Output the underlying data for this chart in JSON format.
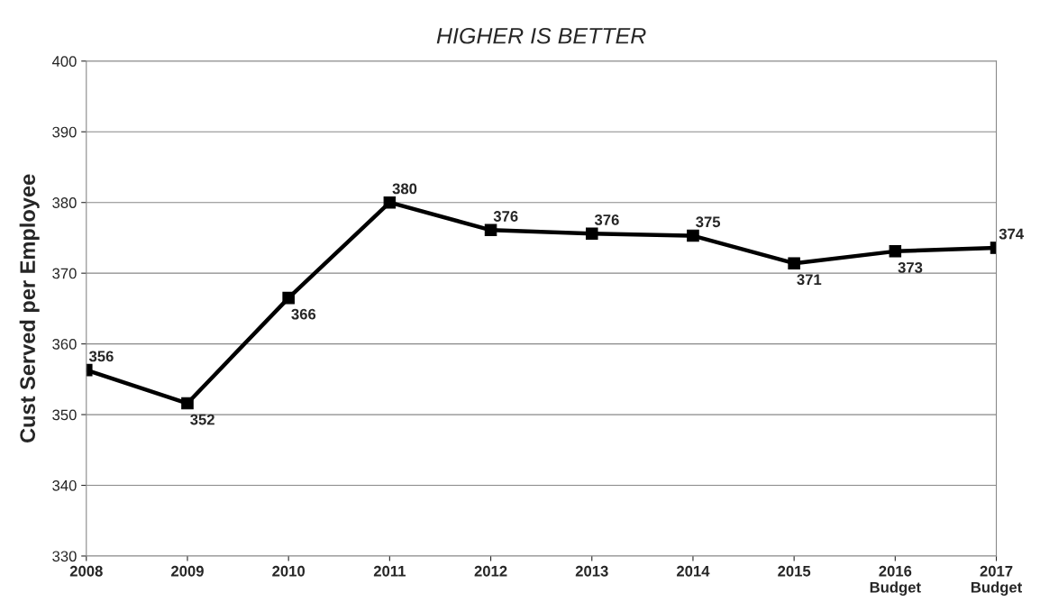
{
  "chart_data": {
    "type": "line",
    "title": "HIGHER IS BETTER",
    "ylabel": "Cust Served per Employee",
    "categories": [
      "2008",
      "2009",
      "2010",
      "2011",
      "2012",
      "2013",
      "2014",
      "2015",
      "2016\nBudget",
      "2017\nBudget"
    ],
    "series": [
      {
        "color": "#000000",
        "values": [
          356.3,
          351.6,
          366.5,
          380.0,
          376.1,
          375.6,
          375.3,
          371.4,
          373.1,
          373.6
        ],
        "value_labels": [
          "356",
          "352",
          "366",
          "380",
          "376",
          "376",
          "375",
          "371",
          "373",
          "374"
        ]
      }
    ],
    "ylim": [
      330,
      400
    ],
    "yticks": [
      330,
      340,
      350,
      360,
      370,
      380,
      390,
      400
    ],
    "grid": "y",
    "legend": false,
    "marker": "square",
    "line_style": "solid"
  }
}
